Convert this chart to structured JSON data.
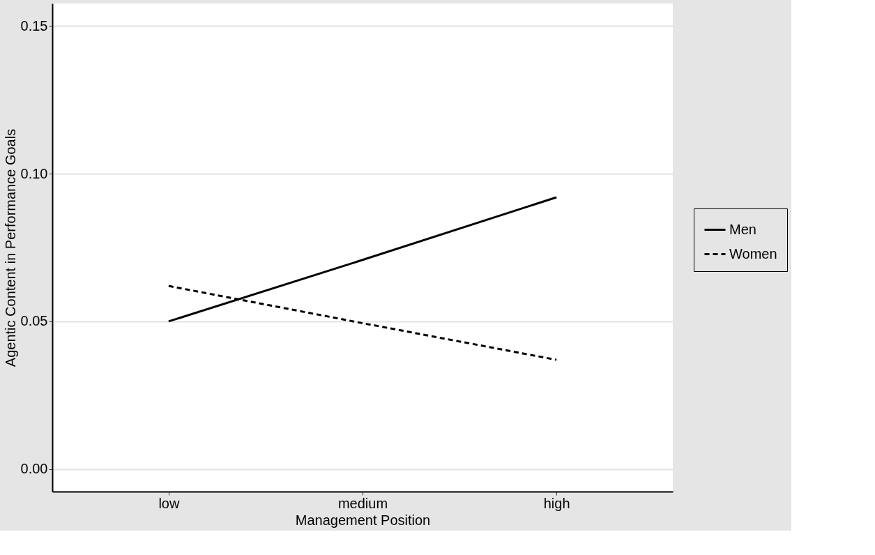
{
  "chart_data": {
    "type": "line",
    "xlabel": "Management Position",
    "ylabel": "Agentic Content in Performance Goals",
    "categories": [
      "low",
      "medium",
      "high"
    ],
    "series": [
      {
        "name": "Men",
        "color": "#000000",
        "line_style": "solid",
        "values": [
          0.05,
          0.0708,
          0.092
        ]
      },
      {
        "name": "Women",
        "color": "#000000",
        "line_style": "dashed",
        "values": [
          0.062,
          0.0494,
          0.037
        ]
      }
    ],
    "ylim": [
      -0.0076,
      0.1576
    ],
    "yticks": [
      {
        "value": 0,
        "label": "0.00"
      },
      0.05,
      {
        "value": 0.1,
        "label": "0.10"
      },
      0.15
    ],
    "grid": "y",
    "legend": "right",
    "marker": "none"
  }
}
